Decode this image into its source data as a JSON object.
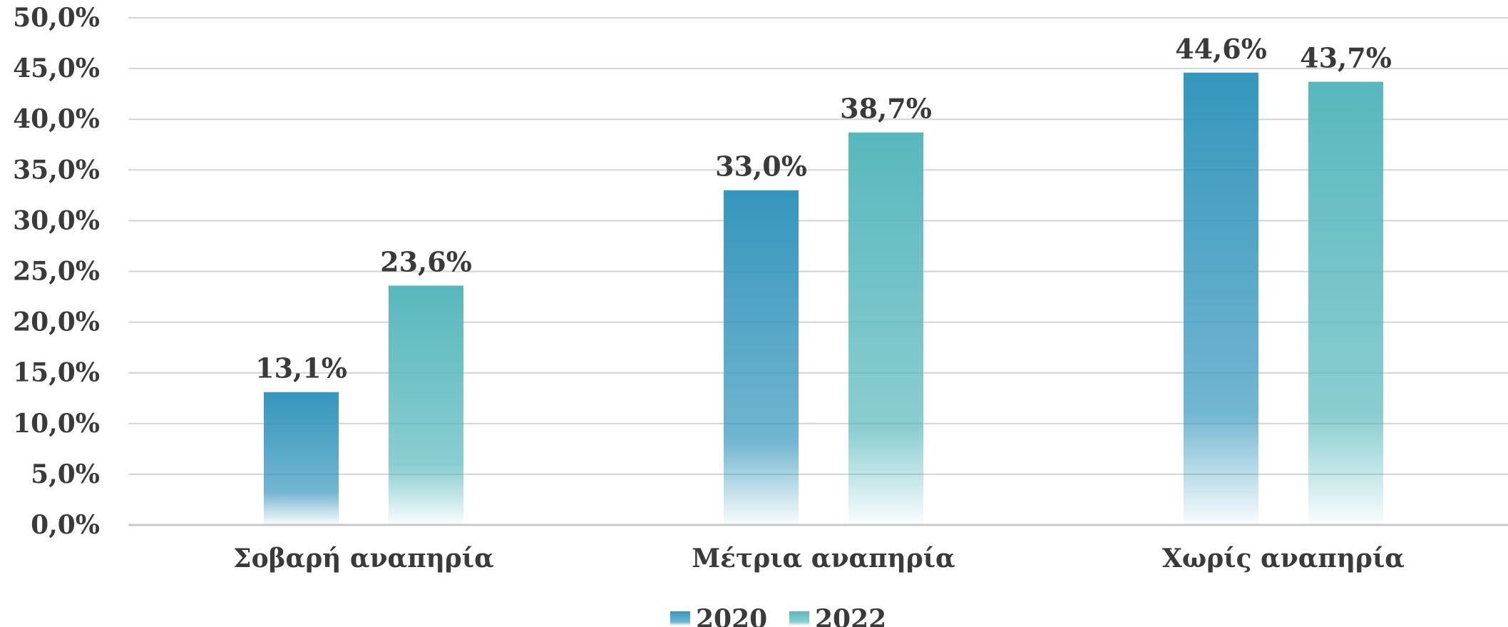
{
  "chart_data": {
    "type": "bar",
    "title": "",
    "xlabel": "",
    "ylabel": "",
    "categories": [
      "Σοβαρή αναπηρία",
      "Μέτρια αναπηρία",
      "Χωρίς αναπηρία"
    ],
    "series": [
      {
        "name": "2020",
        "values": [
          13.1,
          33.0,
          44.6
        ],
        "labels": [
          "13,1%",
          "33,0%",
          "44,6%"
        ],
        "color": "#3596bd"
      },
      {
        "name": "2022",
        "values": [
          23.6,
          38.7,
          43.7
        ],
        "labels": [
          "23,6%",
          "38,7%",
          "43,7%"
        ],
        "color": "#58b8bd"
      }
    ],
    "ylim": [
      0,
      50
    ],
    "yticks": [
      0,
      5,
      10,
      15,
      20,
      25,
      30,
      35,
      40,
      45,
      50
    ],
    "ytick_labels": [
      "0,0%",
      "5,0%",
      "10,0%",
      "15,0%",
      "20,0%",
      "25,0%",
      "30,0%",
      "35,0%",
      "40,0%",
      "45,0%",
      "50,0%"
    ],
    "grid": true,
    "legend_position": "bottom-center"
  }
}
